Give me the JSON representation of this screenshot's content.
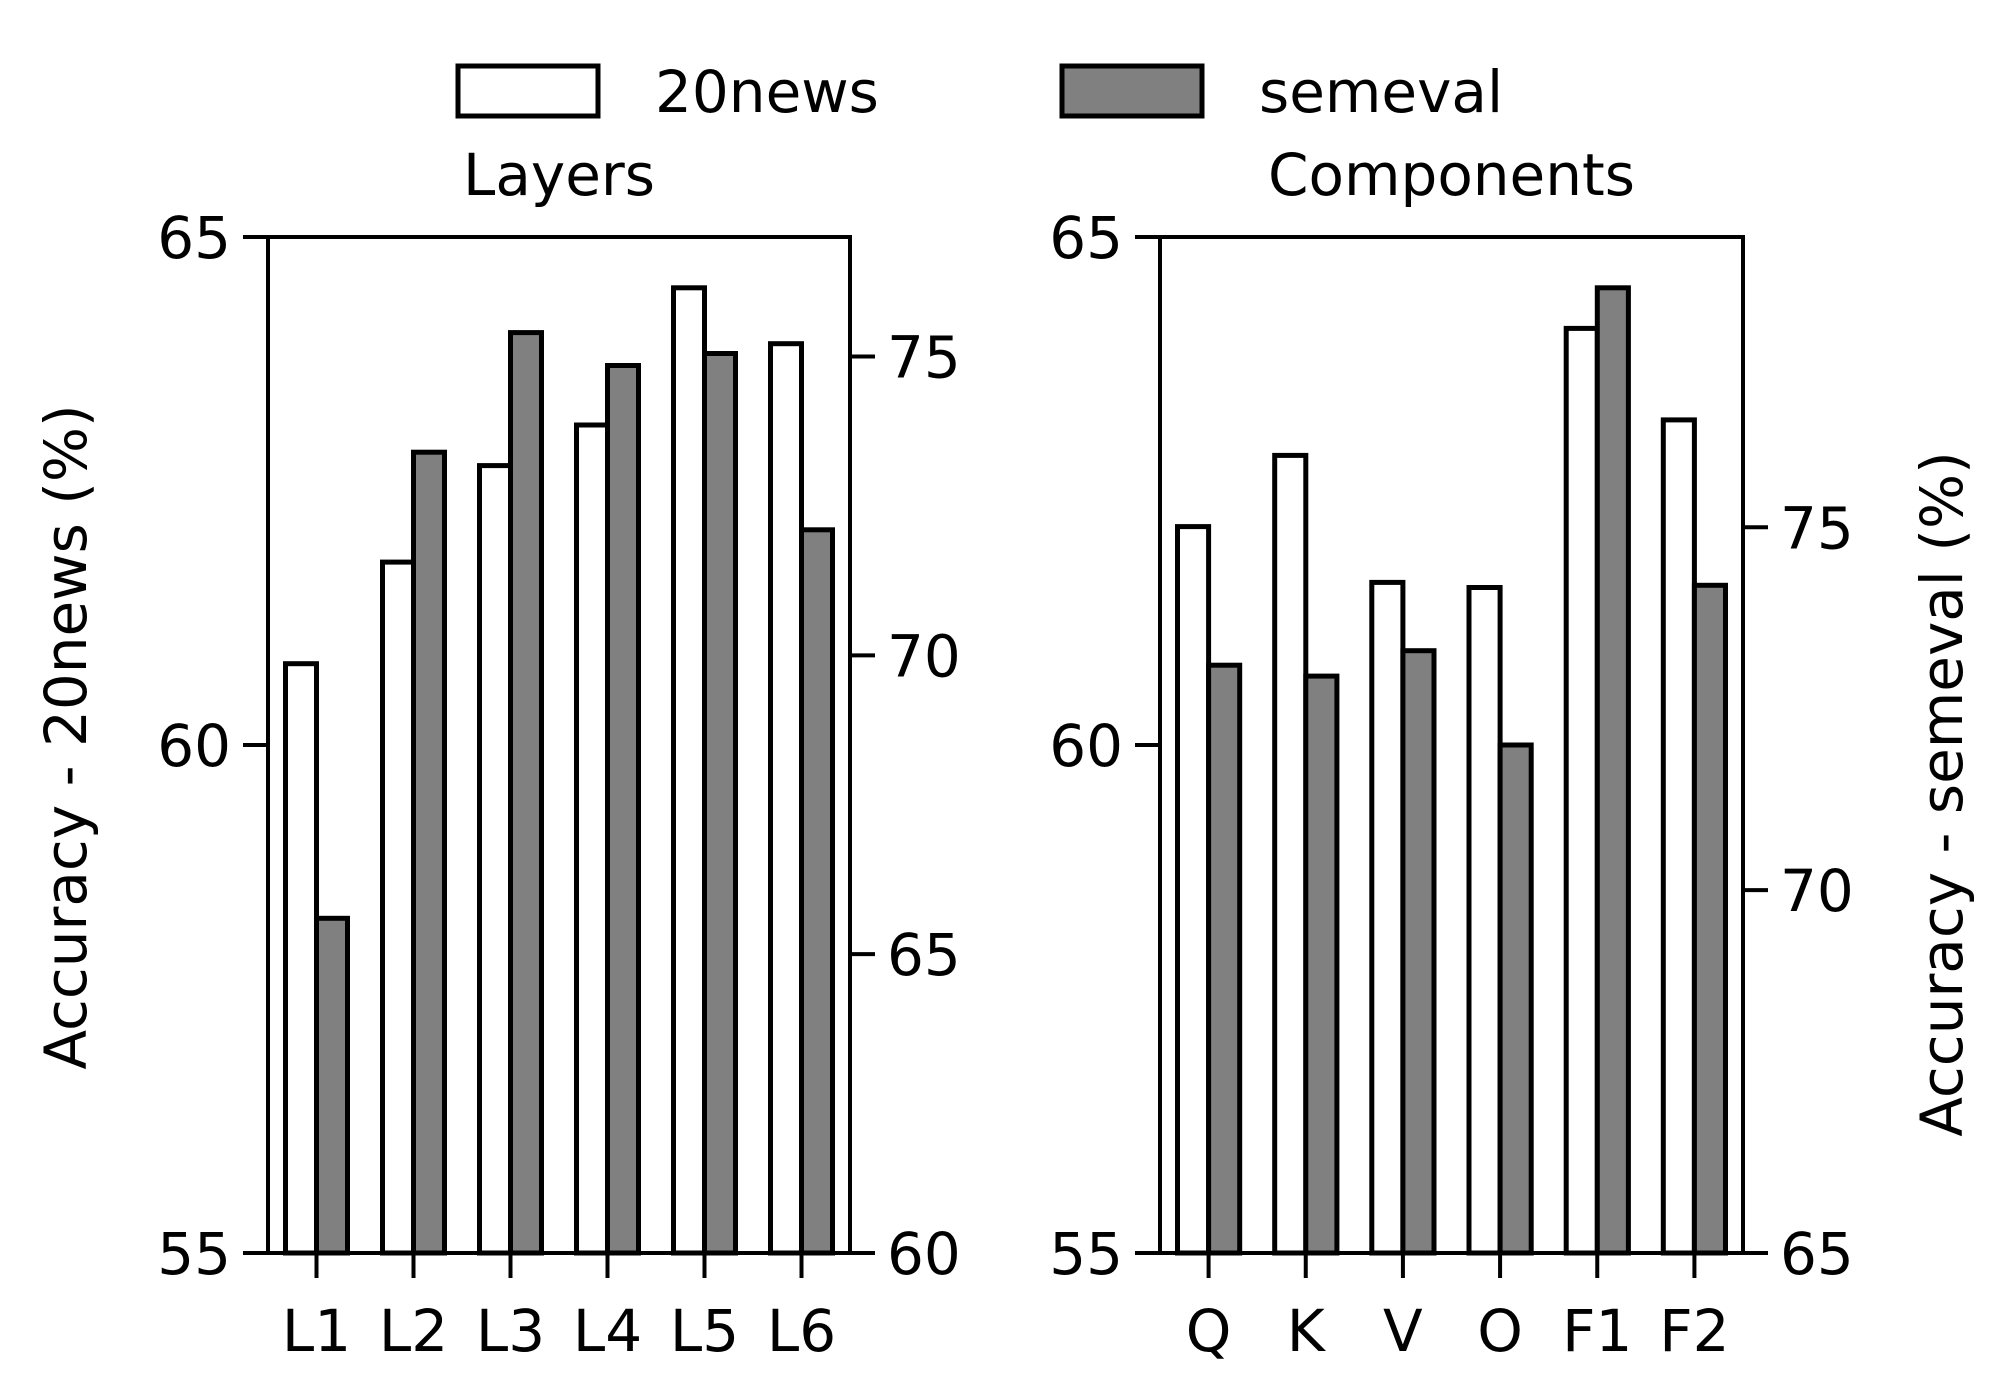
{
  "legend": {
    "items": [
      {
        "label": "20news",
        "fill": "#ffffff"
      },
      {
        "label": "semeval",
        "fill": "#808080"
      }
    ]
  },
  "axes": {
    "left_ylabel": "Accuracy - 20news (%)",
    "right_ylabel": "Accuracy - semeval (%)"
  },
  "colors": {
    "news": "#ffffff",
    "semeval": "#808080",
    "edge": "#000000"
  },
  "chart_data": [
    {
      "type": "bar",
      "title": "Layers",
      "categories": [
        "L1",
        "L2",
        "L3",
        "L4",
        "L5",
        "L6"
      ],
      "series": [
        {
          "name": "20news",
          "axis": "left",
          "values": [
            60.8,
            61.8,
            62.75,
            63.15,
            64.5,
            63.95
          ]
        },
        {
          "name": "semeval",
          "axis": "right",
          "values": [
            65.6,
            73.4,
            75.4,
            74.85,
            75.05,
            72.1
          ]
        }
      ],
      "ylim_left": [
        55,
        65
      ],
      "ylim_right": [
        60,
        77
      ],
      "yticks_left": [
        55,
        60,
        65
      ],
      "yticks_right": [
        60,
        65,
        70,
        75
      ],
      "xlabel": "",
      "ylabel_left": "Accuracy - 20news (%)",
      "ylabel_right": "",
      "grid": false,
      "legend": "top-center"
    },
    {
      "type": "bar",
      "title": "Components",
      "categories": [
        "Q",
        "K",
        "V",
        "O",
        "F1",
        "F2"
      ],
      "series": [
        {
          "name": "20news",
          "axis": "left",
          "values": [
            62.15,
            62.85,
            61.6,
            61.55,
            64.1,
            63.2
          ]
        },
        {
          "name": "semeval",
          "axis": "right",
          "values": [
            73.1,
            72.95,
            73.3,
            72.0,
            78.3,
            74.2
          ]
        }
      ],
      "ylim_left": [
        55,
        65
      ],
      "ylim_right": [
        65,
        79
      ],
      "yticks_left": [
        55,
        60,
        65
      ],
      "yticks_right": [
        65,
        70,
        75
      ],
      "xlabel": "",
      "ylabel_left": "",
      "ylabel_right": "Accuracy - semeval (%)",
      "grid": false,
      "legend": "top-center"
    }
  ]
}
